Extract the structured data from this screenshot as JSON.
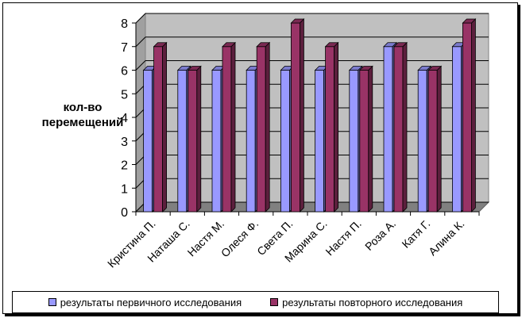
{
  "chart_data": {
    "type": "bar",
    "categories": [
      "Кристина П.",
      "Наташа С.",
      "Настя М.",
      "Олеся Ф.",
      "Света П.",
      "Марина С.",
      "Настя П.",
      "Роза А.",
      "Катя Г.",
      "Алина К."
    ],
    "series": [
      {
        "name": "результаты первичного исследования",
        "color": "#9999ff",
        "values": [
          6,
          6,
          6,
          6,
          6,
          6,
          6,
          7,
          6,
          7
        ]
      },
      {
        "name": "результаты повторного исследования",
        "color": "#993366",
        "values": [
          7,
          6,
          7,
          7,
          8,
          7,
          6,
          7,
          6,
          8
        ]
      }
    ],
    "title": "",
    "xlabel": "",
    "ylabel": "кол-во перемещений",
    "ylim": [
      0,
      8
    ],
    "yticks": [
      "0",
      "1",
      "2",
      "3",
      "4",
      "5",
      "6",
      "7",
      "8"
    ],
    "grid": true,
    "legend_position": "bottom"
  }
}
